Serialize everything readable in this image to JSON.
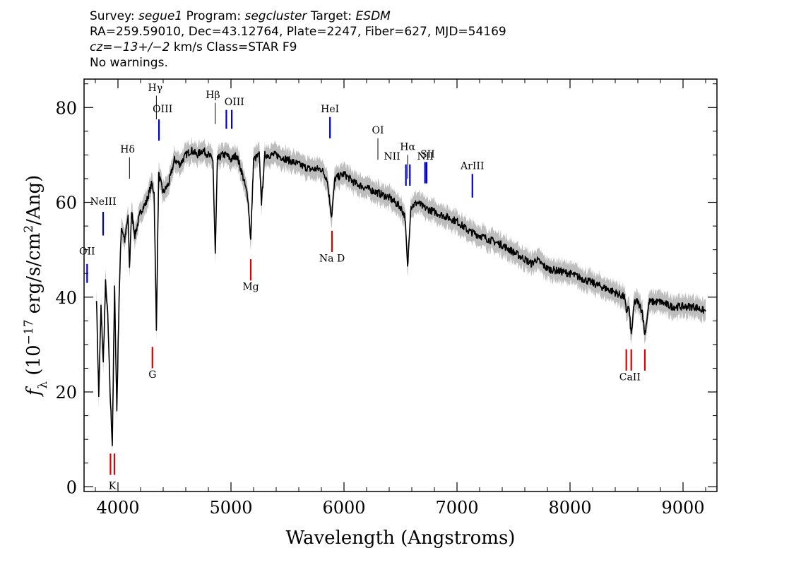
{
  "header": {
    "line1": {
      "survey_label": "Survey:",
      "survey": "segue1",
      "program_label": "Program:",
      "program": "segcluster",
      "target_label": "Target:",
      "target": "ESDM"
    },
    "line2": "RA=259.59010, Dec=43.12764, Plate=2247, Fiber=627, MJD=54169",
    "line3": {
      "cz": "cz=−13+/−2",
      "cz_unit": "km/s",
      "class": "Class=STAR F9"
    },
    "line4": "No warnings."
  },
  "chart_data": {
    "type": "line",
    "xlabel": "Wavelength (Angstroms)",
    "ylabel": "f_λ (10^-17 erg/s/cm^2/Ang)",
    "xlim": [
      3700,
      9300
    ],
    "ylim": [
      -1,
      86
    ],
    "xticks": [
      4000,
      5000,
      6000,
      7000,
      8000,
      9000
    ],
    "yticks": [
      0,
      20,
      40,
      60,
      80
    ],
    "colors": {
      "spectrum": "#000000",
      "error_band": "#bdbdbd",
      "emission": "#0000cc",
      "absorption": "#dd0000"
    },
    "series": [
      {
        "name": "flux",
        "x": [
          3810,
          3830,
          3850,
          3870,
          3890,
          3910,
          3930,
          3950,
          3970,
          3990,
          4010,
          4030,
          4060,
          4090,
          4102,
          4120,
          4150,
          4200,
          4250,
          4300,
          4320,
          4340,
          4360,
          4400,
          4450,
          4500,
          4550,
          4600,
          4650,
          4700,
          4750,
          4800,
          4840,
          4861,
          4880,
          4920,
          4960,
          5000,
          5050,
          5100,
          5150,
          5175,
          5200,
          5250,
          5270,
          5300,
          5400,
          5500,
          5600,
          5700,
          5800,
          5850,
          5890,
          5920,
          6000,
          6100,
          6200,
          6300,
          6400,
          6500,
          6540,
          6563,
          6590,
          6650,
          6700,
          6800,
          6900,
          7000,
          7100,
          7200,
          7400,
          7600,
          7660,
          7700,
          7800,
          8000,
          8200,
          8400,
          8480,
          8498,
          8520,
          8542,
          8570,
          8600,
          8640,
          8662,
          8700,
          8800,
          8900,
          9000,
          9100,
          9200
        ],
        "y": [
          40,
          19,
          38,
          26,
          43,
          36,
          20,
          9,
          42,
          16,
          40,
          55,
          52,
          57,
          46,
          58,
          53,
          58,
          60,
          64,
          62,
          33,
          66,
          62,
          64,
          69,
          68,
          70,
          71,
          70,
          71,
          70,
          69,
          49,
          69,
          70,
          70,
          69,
          70,
          66,
          61,
          52,
          69,
          70,
          60,
          70,
          70,
          69,
          68,
          67,
          67,
          65,
          57,
          65,
          66,
          64,
          63,
          62,
          61,
          59,
          57,
          46,
          59,
          60,
          59,
          58,
          57,
          56,
          54,
          53,
          51,
          48,
          47,
          48,
          46,
          45,
          43,
          41,
          40,
          37,
          38,
          32,
          39,
          39,
          37,
          32,
          39,
          39,
          38,
          38,
          38,
          37
        ]
      }
    ],
    "emission_lines": [
      {
        "label": "OII",
        "x": 3727,
        "y1": 43,
        "y2": 47,
        "lx": 3727,
        "ly": 49
      },
      {
        "label": "NeIII",
        "x": 3869,
        "y1": 53,
        "y2": 58,
        "lx": 3869,
        "ly": 59.5
      },
      {
        "label": "OIII",
        "x": 4363,
        "y1": 73,
        "y2": 77.5,
        "lx": 4395,
        "ly": 79
      },
      {
        "label": "OIII",
        "x": 4959,
        "y1": 75.5,
        "y2": 79.5,
        "lx": 5030,
        "ly": 80.5
      },
      {
        "label": "OIII",
        "x": 5007,
        "y1": 75.5,
        "y2": 79.5,
        "lx": null,
        "ly": null
      },
      {
        "label": "HeI",
        "x": 5876,
        "y1": 73.5,
        "y2": 78,
        "lx": 5876,
        "ly": 79
      },
      {
        "label": "NII",
        "x": 6548,
        "y1": 63.5,
        "y2": 68,
        "lx": 6425,
        "ly": 69
      },
      {
        "label": "NII",
        "x": 6583,
        "y1": 63.5,
        "y2": 68,
        "lx": 6720,
        "ly": 69
      },
      {
        "label": "SII",
        "x": 6717,
        "y1": 64,
        "y2": 68.5,
        "lx": 6740,
        "ly": 69.5
      },
      {
        "label": "SII",
        "x": 6731,
        "y1": 64,
        "y2": 68.5,
        "lx": null,
        "ly": null
      },
      {
        "label": "ArIII",
        "x": 7136,
        "y1": 61,
        "y2": 66,
        "lx": 7136,
        "ly": 67
      }
    ],
    "balmer_lines": [
      {
        "label": "Hδ",
        "x": 4102,
        "y1": 65,
        "y2": 69.5,
        "lx": 4085,
        "ly": 70.5
      },
      {
        "label": "Hγ",
        "x": 4340,
        "y1": 77.5,
        "y2": 82.5,
        "lx": 4330,
        "ly": 83.5
      },
      {
        "label": "Hβ",
        "x": 4861,
        "y1": 76.5,
        "y2": 81,
        "lx": 4840,
        "ly": 82
      },
      {
        "label": "OI",
        "x": 6300,
        "y1": 69,
        "y2": 73.5,
        "lx": 6300,
        "ly": 74.5
      },
      {
        "label": "Hα",
        "x": 6563,
        "y1": 65,
        "y2": 70,
        "lx": 6563,
        "ly": 71
      }
    ],
    "absorption_lines": [
      {
        "label": "K",
        "x": 3934,
        "y1": 2.5,
        "y2": 7,
        "lx": 3950,
        "ly": -0.5
      },
      {
        "label": "H",
        "x": 3969,
        "y1": 2.5,
        "y2": 7,
        "lx": null,
        "ly": null
      },
      {
        "label": "G",
        "x": 4305,
        "y1": 25,
        "y2": 29.5,
        "lx": 4305,
        "ly": 23
      },
      {
        "label": "Mg",
        "x": 5175,
        "y1": 43.5,
        "y2": 48,
        "lx": 5175,
        "ly": 41.5
      },
      {
        "label": "Na D",
        "x": 5894,
        "y1": 49.5,
        "y2": 54,
        "lx": 5894,
        "ly": 47.5
      },
      {
        "label": "CaII",
        "x": 8498,
        "y1": 24.5,
        "y2": 29,
        "lx": 8530,
        "ly": 22.5
      },
      {
        "label": "CaII",
        "x": 8542,
        "y1": 24.5,
        "y2": 29,
        "lx": null,
        "ly": null
      },
      {
        "label": "CaII",
        "x": 8662,
        "y1": 24.5,
        "y2": 29,
        "lx": null,
        "ly": null
      }
    ]
  }
}
